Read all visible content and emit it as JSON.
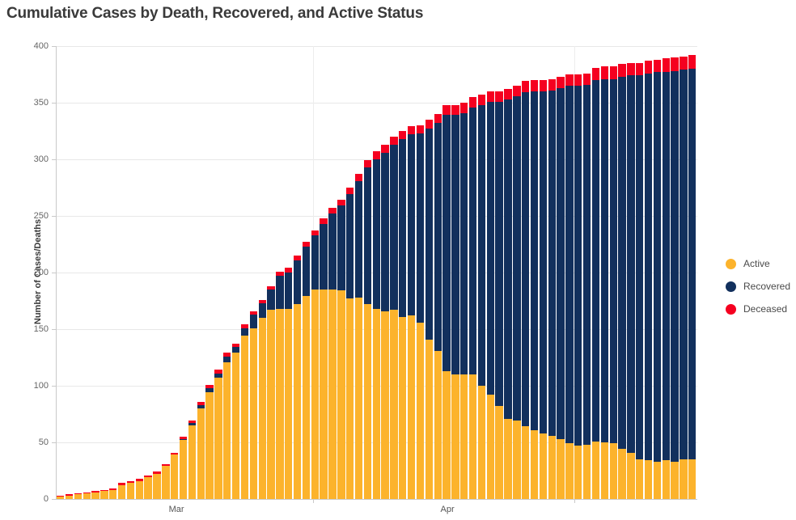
{
  "chart_data": {
    "type": "bar",
    "stacked": true,
    "title": "Cumulative Cases by Death, Recovered, and Active Status",
    "ylabel": "Number of Cases/Deaths",
    "ylim": [
      0,
      400
    ],
    "y_ticks": [
      0,
      50,
      100,
      150,
      200,
      250,
      300,
      350,
      400
    ],
    "grid": "horizontal-major",
    "legend_position": "right",
    "x_axis": {
      "month_labels": [
        "Mar",
        "Apr"
      ]
    },
    "colors": {
      "active": "#FCB32C",
      "recovered": "#12305D",
      "deceased": "#F50020",
      "axis": "#c9c9c9",
      "gridline": "#e8e8e8",
      "title_text": "#3a3a3a",
      "tick_text": "#666666"
    },
    "series": [
      {
        "name": "Active",
        "color": "#FCB32C",
        "values": [
          2,
          3,
          4,
          5,
          6,
          7,
          8,
          12,
          14,
          16,
          19,
          22,
          29,
          39,
          52,
          65,
          80,
          94,
          107,
          121,
          129,
          144,
          151,
          160,
          167,
          168,
          168,
          172,
          179,
          185,
          185,
          185,
          184,
          177,
          178,
          172,
          168,
          166,
          167,
          161,
          162,
          156,
          141,
          131,
          113,
          110,
          110,
          110,
          100,
          92,
          82,
          71,
          69,
          64,
          61,
          58,
          56,
          53,
          49,
          47,
          48,
          51,
          50,
          49,
          44,
          41,
          35,
          34,
          33,
          34,
          33,
          35,
          35
        ]
      },
      {
        "name": "Recovered",
        "color": "#12305D",
        "values": [
          0,
          0,
          0,
          0,
          0,
          0,
          0,
          0,
          0,
          0,
          0,
          0,
          0,
          0,
          1,
          2,
          3,
          4,
          4,
          5,
          5,
          7,
          12,
          13,
          18,
          29,
          32,
          39,
          44,
          48,
          58,
          67,
          75,
          92,
          103,
          121,
          132,
          140,
          146,
          157,
          160,
          167,
          186,
          201,
          226,
          229,
          231,
          236,
          248,
          259,
          269,
          282,
          287,
          295,
          299,
          302,
          305,
          310,
          316,
          318,
          318,
          319,
          321,
          322,
          329,
          333,
          339,
          342,
          344,
          343,
          345,
          344,
          345
        ]
      },
      {
        "name": "Deceased",
        "color": "#F50020",
        "values": [
          1,
          1,
          1,
          1,
          1,
          1,
          1,
          2,
          2,
          2,
          2,
          2,
          2,
          2,
          2,
          2,
          3,
          3,
          3,
          3,
          3,
          3,
          3,
          3,
          3,
          4,
          4,
          4,
          4,
          4,
          5,
          5,
          5,
          6,
          6,
          6,
          7,
          7,
          7,
          7,
          7,
          7,
          8,
          8,
          9,
          9,
          9,
          9,
          9,
          9,
          9,
          9,
          9,
          10,
          10,
          10,
          10,
          10,
          10,
          10,
          10,
          11,
          11,
          11,
          11,
          11,
          11,
          11,
          11,
          12,
          12,
          12,
          12
        ]
      }
    ]
  }
}
